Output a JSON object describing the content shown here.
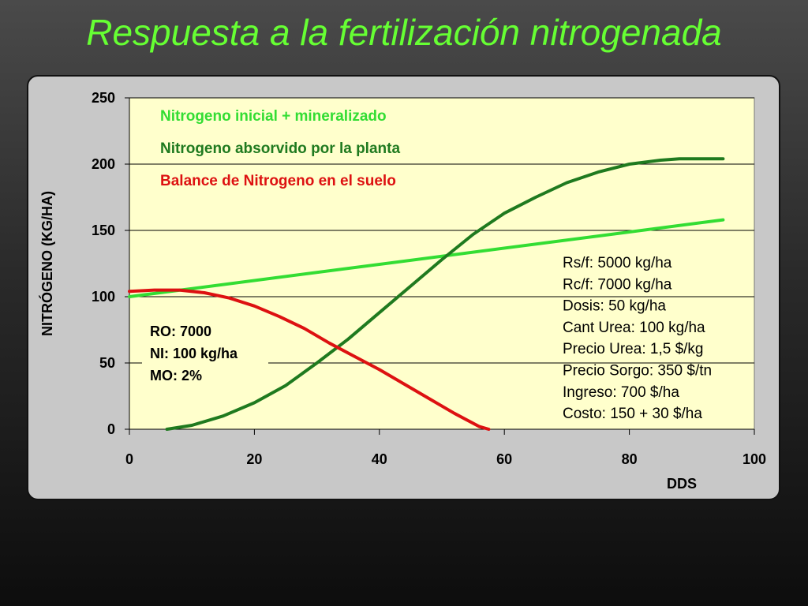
{
  "slide": {
    "title": "Respuesta a la fertilización nitrogenada"
  },
  "chart_data": {
    "type": "line",
    "title": "",
    "xlabel": "DDS",
    "ylabel": "NITRÓGENO (KG/HA)",
    "xlim": [
      0,
      100
    ],
    "ylim": [
      0,
      250
    ],
    "xticks": [
      0,
      20,
      40,
      60,
      80,
      100
    ],
    "yticks": [
      0,
      50,
      100,
      150,
      200,
      250
    ],
    "grid": "horizontal",
    "legend_position": "top-left",
    "series": [
      {
        "name": "Nitrogeno inicial + mineralizado",
        "color": "#33dd33",
        "x": [
          0,
          95
        ],
        "y": [
          100,
          158
        ]
      },
      {
        "name": "Nitrogeno absorvido por la planta",
        "color": "#1f7a1f",
        "x": [
          6,
          10,
          15,
          20,
          25,
          30,
          35,
          40,
          45,
          50,
          55,
          60,
          65,
          70,
          75,
          80,
          85,
          88,
          90,
          92,
          95
        ],
        "y": [
          0,
          3,
          10,
          20,
          33,
          50,
          68,
          88,
          108,
          128,
          147,
          163,
          175,
          186,
          194,
          200,
          203,
          204,
          204,
          204,
          204
        ]
      },
      {
        "name": "Balance de Nitrogeno en el suelo",
        "color": "#dd1111",
        "x": [
          0,
          4,
          8,
          12,
          16,
          20,
          24,
          28,
          32,
          36,
          40,
          44,
          48,
          52,
          56,
          57.5
        ],
        "y": [
          104,
          105,
          105,
          103,
          99,
          93,
          85,
          76,
          65,
          55,
          45,
          34,
          23,
          12,
          2,
          0
        ]
      }
    ],
    "annotations": {
      "soil_box": [
        "RO: 7000",
        "NI: 100 kg/ha",
        "MO: 2%"
      ],
      "economics": [
        "Rs/f: 5000 kg/ha",
        "Rc/f: 7000 kg/ha",
        "Dosis: 50 kg/ha",
        "Cant Urea: 100 kg/ha",
        "Precio Urea: 1,5 $/kg",
        "Precio Sorgo: 350 $/tn",
        "Ingreso: 700 $/ha",
        "Costo: 150 + 30 $/ha"
      ]
    }
  }
}
